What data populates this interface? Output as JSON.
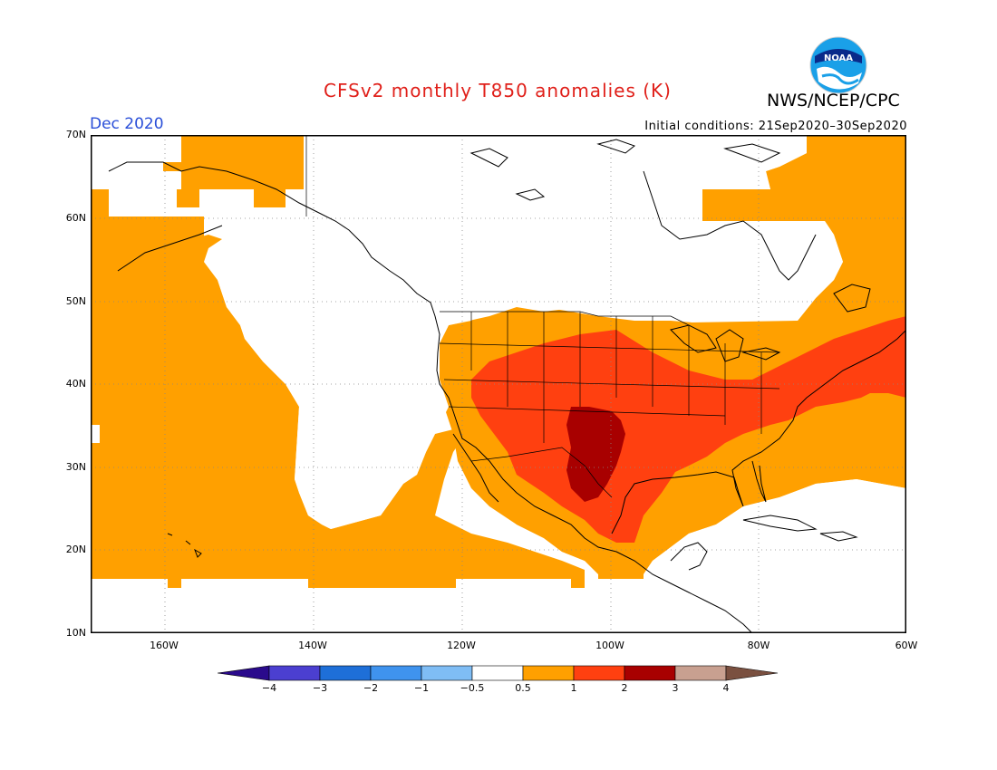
{
  "title": "CFSv2 monthly T850 anomalies (K)",
  "agency": "NWS/NCEP/CPC",
  "logo_text": "NOAA",
  "valid_month": "Dec 2020",
  "initial_conditions": "Initial conditions: 21Sep2020–30Sep2020",
  "lat_labels": [
    "70N",
    "60N",
    "50N",
    "40N",
    "30N",
    "20N",
    "10N"
  ],
  "lon_labels": [
    "160W",
    "140W",
    "120W",
    "100W",
    "80W",
    "60W"
  ],
  "colorbar": {
    "tick_labels": [
      "−4",
      "−3",
      "−2",
      "−1",
      "−0.5",
      "0.5",
      "1",
      "2",
      "3",
      "4"
    ],
    "colors": [
      "#2a0a8c",
      "#4b3fd0",
      "#1e6fd8",
      "#3f93ee",
      "#7fbdf5",
      "#ffffff",
      "#ffa000",
      "#ff4010",
      "#a80000",
      "#c8a090",
      "#7a5040"
    ]
  },
  "anomaly_colors": {
    "0.5-1": "#ffa000",
    "1-2": "#ff4010",
    "2-3": "#a80000"
  }
}
